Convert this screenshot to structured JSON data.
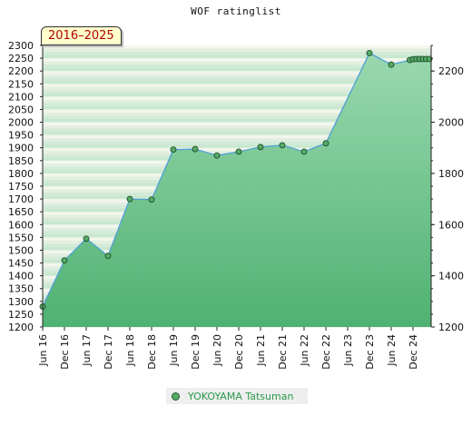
{
  "title": "WOF ratinglist",
  "period_badge": "2016–2025",
  "legend": {
    "label": "YOKOYAMA Tatsuman"
  },
  "colors": {
    "line": "#4f9fd4",
    "fill_top": "#9ad8ae",
    "fill_bottom": "#4fb272",
    "marker": "#55aa66",
    "band_light": "#f2f6ee",
    "band_dark": "#c8e8d0"
  },
  "chart_data": {
    "type": "line",
    "title": "WOF ratinglist",
    "x_tick_labels": [
      "Jun 16",
      "Dec 16",
      "Jun 17",
      "Dec 17",
      "Jun 18",
      "Dec 18",
      "Jun 19",
      "Dec 19",
      "Jun 20",
      "Dec 20",
      "Jun 21",
      "Dec 21",
      "Jun 22",
      "Dec 22",
      "Jun 23",
      "Dec 23",
      "Jun 24",
      "Dec 24"
    ],
    "y_left_ticks": [
      "2300",
      "2250",
      "2200",
      "2150",
      "2100",
      "2050",
      "2000",
      "1950",
      "1900",
      "1850",
      "1800",
      "1750",
      "1700",
      "1650",
      "1600",
      "1550",
      "1500",
      "1450",
      "1400",
      "1350",
      "1300",
      "1250",
      "1200"
    ],
    "y_right_ticks": [
      "2200",
      "2000",
      "1800",
      "1600",
      "1400",
      "1200"
    ],
    "ylim": [
      1200,
      2300
    ],
    "grid": true,
    "legend_position": "bottom",
    "series": [
      {
        "name": "YOKOYAMA Tatsuman",
        "x": [
          0,
          1,
          2,
          3,
          4,
          5,
          6,
          7,
          8,
          9,
          10,
          11,
          12,
          13,
          15,
          16,
          16.85,
          17.0,
          17.15,
          17.3,
          17.45,
          17.6,
          17.75
        ],
        "values": [
          1280,
          1460,
          1545,
          1478,
          1700,
          1698,
          1893,
          1895,
          1870,
          1885,
          1903,
          1910,
          1885,
          1918,
          2270,
          2225,
          2243,
          2246,
          2247,
          2247,
          2247,
          2247,
          2247
        ]
      }
    ]
  }
}
